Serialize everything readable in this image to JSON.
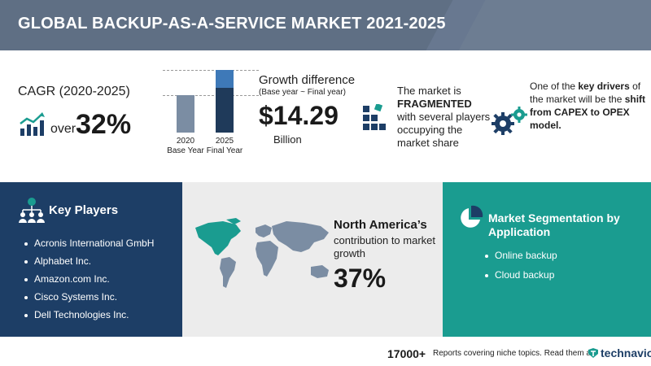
{
  "header": {
    "title": "GLOBAL BACKUP-AS-A-SERVICE MARKET 2021-2025"
  },
  "cagr": {
    "label": "CAGR (2020-2025)",
    "prefix": "over",
    "value": "32%"
  },
  "growth": {
    "bars": [
      {
        "year": "2020",
        "caption": "Base Year"
      },
      {
        "year": "2025",
        "caption": "Final Year"
      }
    ],
    "title": "Growth difference",
    "subtitle": "(Base year ~ Final year)",
    "value": "$14.29",
    "unit": "Billion"
  },
  "market_structure": {
    "line1": "The market is",
    "highlight": "FRAGMENTED",
    "line2": "with several players occupying the market share"
  },
  "drivers": {
    "text1": "One of the ",
    "bold1": "key drivers",
    "text2": " of the market will be the ",
    "bold2": "shift from CAPEX to OPEX model."
  },
  "key_players": {
    "title": "Key Players",
    "items": [
      "Acronis International GmbH",
      "Alphabet Inc.",
      "Amazon.com Inc.",
      "Cisco Systems Inc.",
      "Dell Technologies Inc."
    ]
  },
  "region": {
    "title": "North America’s",
    "subtitle": "contribution to market growth",
    "value": "37%"
  },
  "segmentation": {
    "title": "Market Segmentation by Application",
    "items": [
      "Online backup",
      "Cloud backup"
    ]
  },
  "footer": {
    "count": "17000+",
    "text": "Reports covering niche topics. Read them at",
    "brand": "technavio"
  },
  "colors": {
    "header": "#5f6f84",
    "navy": "#1d3e66",
    "teal": "#1a9c90",
    "light_panel": "#ececec",
    "bar_light": "#7b8da3",
    "bar_highlight": "#3e79b8"
  }
}
